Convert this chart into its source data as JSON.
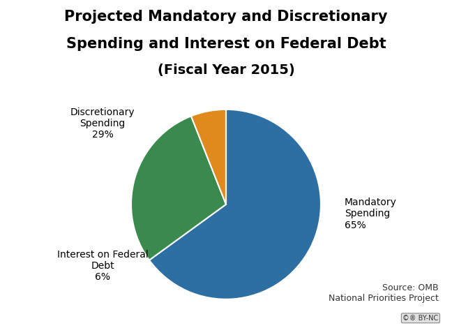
{
  "title_line1": "Projected Mandatory and Discretionary",
  "title_line2": "Spending and Interest on Federal Debt",
  "title_line3": "(Fiscal Year 2015)",
  "slices": [
    65,
    29,
    6
  ],
  "colors": [
    "#2E6FA3",
    "#3A8A4E",
    "#E08A1E"
  ],
  "startangle": 90,
  "source_text": "Source: OMB\nNational Priorities Project",
  "background_color": "#FFFFFF",
  "title_fontsize": 15,
  "label_fontsize": 10,
  "source_fontsize": 9
}
